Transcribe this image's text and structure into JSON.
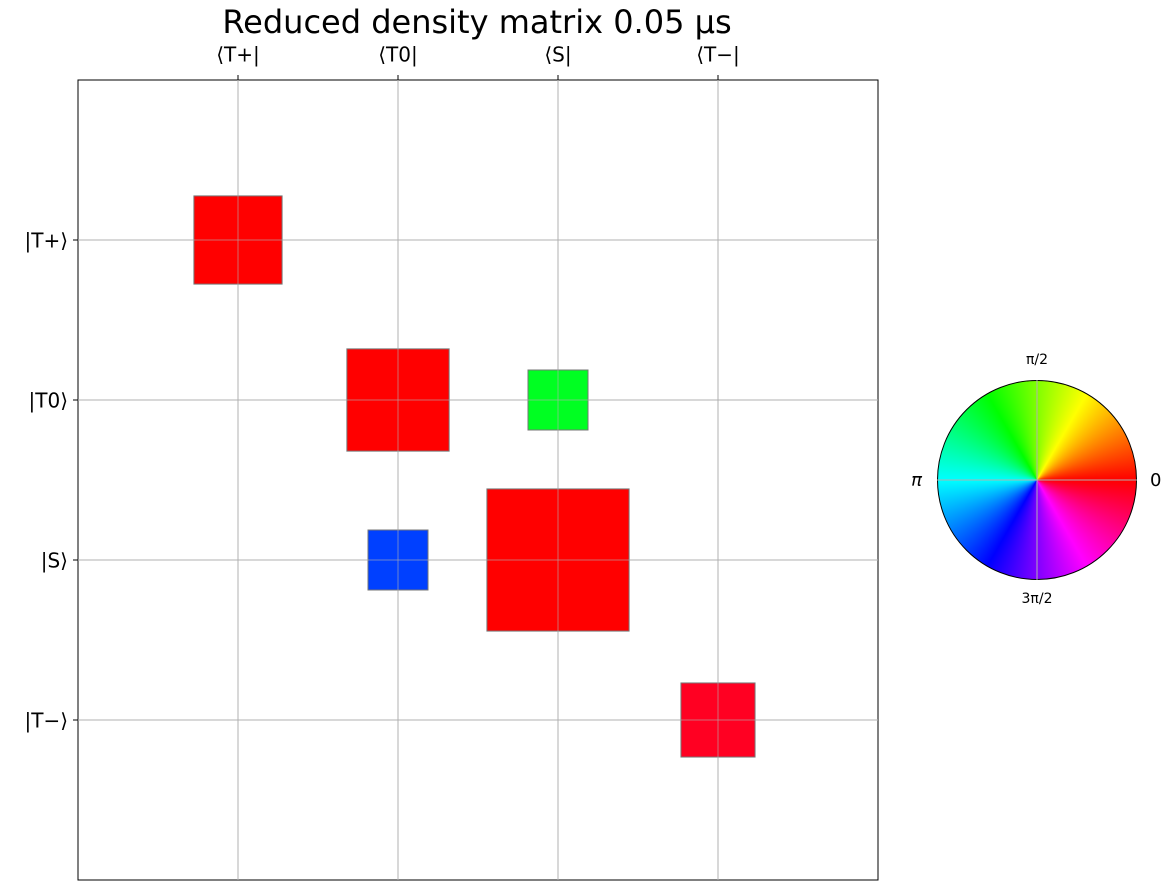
{
  "chart_data": {
    "type": "hinton",
    "title": "Reduced density matrix  0.05 µs",
    "x_categories": [
      "⟨T+|",
      "⟨T0|",
      "⟨S|",
      "⟨T−|"
    ],
    "y_categories": [
      "|T+⟩",
      "|T0⟩",
      "|S⟩",
      "|T−⟩"
    ],
    "grid": true,
    "cells": [
      {
        "row": 0,
        "col": 0,
        "value": 0.177,
        "color": "#ff0000"
      },
      {
        "row": 1,
        "col": 1,
        "value": 0.238,
        "color": "#ff0000"
      },
      {
        "row": 1,
        "col": 2,
        "value": 0.082,
        "color": "#00ff22"
      },
      {
        "row": 2,
        "col": 1,
        "value": 0.082,
        "color": "#0040ff"
      },
      {
        "row": 2,
        "col": 2,
        "value": 0.46,
        "color": "#ff0000"
      },
      {
        "row": 3,
        "col": 3,
        "value": 0.125,
        "color": "#ff0022"
      }
    ],
    "phase_wheel": {
      "top": "π/2",
      "left": "π",
      "right": "0",
      "bottom": "3π/2"
    }
  }
}
